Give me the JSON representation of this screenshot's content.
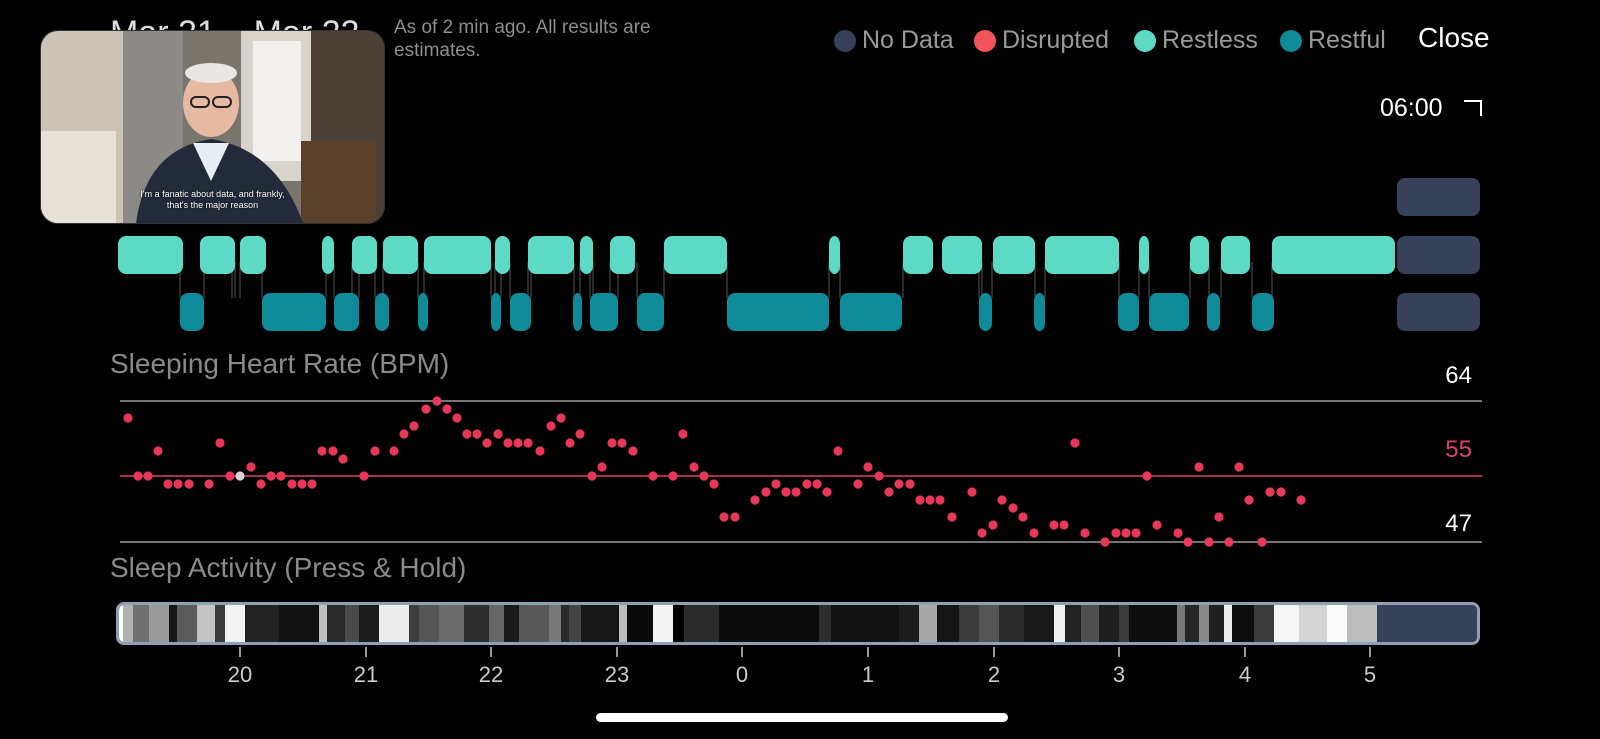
{
  "header": {
    "date_range": "Mar 21 – Mar 22",
    "as_of": "As of 2 min ago. All results are estimates.",
    "close_label": "Close",
    "end_time": "06:00"
  },
  "legend": [
    {
      "label": "No Data",
      "color": "#37425a"
    },
    {
      "label": "Disrupted",
      "color": "#f2545b"
    },
    {
      "label": "Restless",
      "color": "#5cdac6"
    },
    {
      "label": "Restful",
      "color": "#0f8a98"
    }
  ],
  "video": {
    "caption_line1": "I'm a fanatic about data, and frankly,",
    "caption_line2": "that's the major reason"
  },
  "heart_rate": {
    "title": "Sleeping Heart Rate (BPM)",
    "max_label": "64",
    "avg_label": "55",
    "min_label": "47"
  },
  "activity": {
    "title": "Sleep Activity (Press & Hold)"
  },
  "time_ticks": [
    "20",
    "21",
    "22",
    "23",
    "0",
    "1",
    "2",
    "3",
    "4",
    "5"
  ],
  "colors": {
    "restless": "#5cdac6",
    "restful": "#0f8a98",
    "no_data": "#37425a",
    "heart_dot": "#e8385a",
    "avg_line": "#d9436b"
  }
}
